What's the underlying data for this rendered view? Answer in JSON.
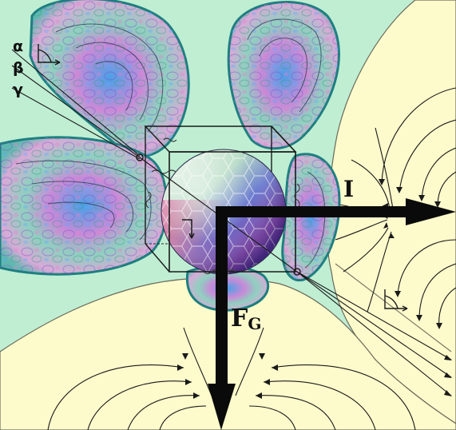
{
  "labels": {
    "alpha": "α",
    "beta": "β",
    "gamma": "γ",
    "current": "I",
    "force_main": "F",
    "force_sub": "G"
  },
  "colors": {
    "background_green": "#bfeed3",
    "field_cream": "#fdfacb",
    "lobe_teal": "#2aa6a6",
    "lobe_magenta": "#d86ad0",
    "lobe_blue": "#3c6fd8",
    "line_dark": "#1a1a1a",
    "sphere_blue": "#3b3b9c",
    "sphere_violet": "#7b3aa5",
    "sphere_pink": "#d94f86",
    "sphere_pale": "#eef6e8"
  }
}
